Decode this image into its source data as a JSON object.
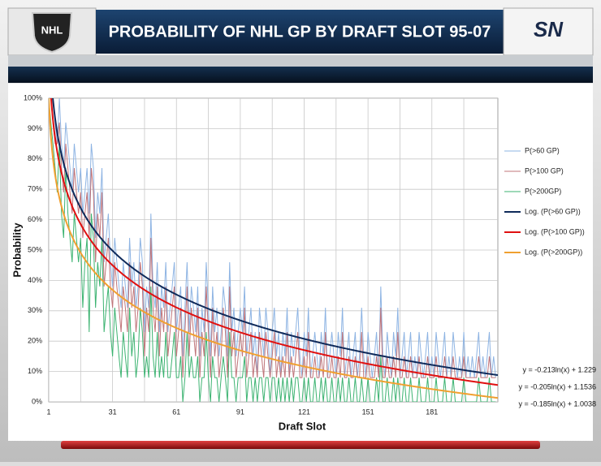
{
  "branding": {
    "left": "NHL",
    "right": "SN"
  },
  "chart_data": {
    "type": "line",
    "title": "PROBABILITY OF NHL GP BY DRAFT SLOT 95-07",
    "xlabel": "Draft Slot",
    "ylabel": "Probability",
    "xlim": [
      1,
      212
    ],
    "xticks": [
      1,
      31,
      61,
      91,
      121,
      151,
      181
    ],
    "xminor": [
      16,
      46,
      76,
      106,
      136,
      166,
      196
    ],
    "ylim": [
      0,
      1
    ],
    "yticks": [
      {
        "value": 0,
        "label": "0%"
      },
      {
        "value": 0.1,
        "label": "10%"
      },
      {
        "value": 0.2,
        "label": "20%"
      },
      {
        "value": 0.3,
        "label": "30%"
      },
      {
        "value": 0.4,
        "label": "40%"
      },
      {
        "value": 0.5,
        "label": "50%"
      },
      {
        "value": 0.6,
        "label": "60%"
      },
      {
        "value": 0.7,
        "label": "70%"
      },
      {
        "value": 0.8,
        "label": "80%"
      },
      {
        "value": 0.9,
        "label": "90%"
      },
      {
        "value": 1,
        "label": "100%"
      }
    ],
    "grid": true,
    "legend": "right",
    "x": [
      1,
      2,
      3,
      4,
      5,
      6,
      7,
      8,
      9,
      10,
      11,
      12,
      13,
      14,
      15,
      16,
      17,
      18,
      19,
      20,
      21,
      22,
      23,
      24,
      25,
      26,
      27,
      28,
      29,
      30,
      31,
      32,
      33,
      34,
      35,
      36,
      37,
      38,
      39,
      40,
      41,
      42,
      43,
      44,
      45,
      46,
      47,
      48,
      49,
      50,
      51,
      52,
      53,
      54,
      55,
      56,
      57,
      58,
      59,
      60,
      61,
      62,
      63,
      64,
      65,
      66,
      67,
      68,
      69,
      70,
      71,
      72,
      73,
      74,
      75,
      76,
      77,
      78,
      79,
      80,
      81,
      82,
      83,
      84,
      85,
      86,
      87,
      88,
      89,
      90,
      91,
      92,
      93,
      94,
      95,
      96,
      97,
      98,
      99,
      100,
      101,
      102,
      103,
      104,
      105,
      106,
      107,
      108,
      109,
      110,
      111,
      112,
      113,
      114,
      115,
      116,
      117,
      118,
      119,
      120,
      121,
      122,
      123,
      124,
      125,
      126,
      127,
      128,
      129,
      130,
      131,
      132,
      133,
      134,
      135,
      136,
      137,
      138,
      139,
      140,
      141,
      142,
      143,
      144,
      145,
      146,
      147,
      148,
      149,
      150,
      151,
      152,
      153,
      154,
      155,
      156,
      157,
      158,
      159,
      160,
      161,
      162,
      163,
      164,
      165,
      166,
      167,
      168,
      169,
      170,
      171,
      172,
      173,
      174,
      175,
      176,
      177,
      178,
      179,
      180,
      181,
      182,
      183,
      184,
      185,
      186,
      187,
      188,
      189,
      190,
      191,
      192,
      193,
      194,
      195,
      196,
      197,
      198,
      199,
      200,
      201,
      202,
      203,
      204,
      205,
      206,
      207,
      208,
      209,
      210,
      211
    ],
    "series": [
      {
        "name": "P(>60 GP)",
        "color": "#8eb4e3",
        "values": [
          1,
          1,
          1,
          0.92,
          0.85,
          1,
          0.85,
          0.77,
          0.92,
          0.85,
          0.77,
          0.69,
          0.85,
          0.77,
          0.69,
          0.77,
          0.62,
          0.69,
          0.77,
          0.62,
          0.85,
          0.77,
          0.54,
          0.69,
          0.62,
          0.77,
          0.46,
          0.54,
          0.62,
          0.46,
          0.38,
          0.54,
          0.46,
          0.38,
          0.31,
          0.46,
          0.38,
          0.31,
          0.54,
          0.38,
          0.46,
          0.31,
          0.38,
          0.54,
          0.46,
          0.23,
          0.38,
          0.31,
          0.62,
          0.38,
          0.31,
          0.46,
          0.23,
          0.38,
          0.31,
          0.46,
          0.23,
          0.31,
          0.38,
          0.46,
          0.23,
          0.31,
          0.38,
          0.15,
          0.31,
          0.46,
          0.23,
          0.38,
          0.31,
          0.23,
          0.38,
          0.15,
          0.31,
          0.23,
          0.46,
          0.31,
          0.15,
          0.38,
          0.23,
          0.31,
          0.15,
          0.23,
          0.38,
          0.31,
          0.15,
          0.46,
          0.23,
          0.31,
          0.15,
          0.23,
          0.31,
          0.23,
          0.38,
          0.15,
          0.23,
          0.31,
          0.15,
          0.23,
          0.08,
          0.31,
          0.23,
          0.15,
          0.31,
          0.23,
          0.08,
          0.23,
          0.31,
          0.15,
          0.23,
          0.08,
          0.23,
          0.15,
          0.31,
          0.08,
          0.23,
          0.15,
          0.23,
          0.31,
          0.15,
          0.08,
          0.23,
          0.15,
          0.31,
          0.08,
          0.15,
          0.23,
          0.15,
          0.08,
          0.23,
          0.15,
          0.31,
          0.08,
          0.15,
          0.23,
          0.15,
          0.08,
          0.23,
          0.15,
          0.31,
          0.08,
          0.15,
          0.23,
          0.08,
          0.15,
          0.23,
          0.08,
          0.15,
          0.31,
          0.15,
          0.08,
          0.23,
          0.15,
          0.08,
          0.15,
          0.23,
          0.08,
          0.38,
          0.15,
          0.08,
          0.23,
          0.15,
          0.08,
          0.23,
          0.15,
          0.31,
          0.08,
          0.15,
          0.23,
          0.08,
          0.15,
          0.23,
          0.08,
          0.15,
          0.08,
          0.23,
          0.15,
          0.08,
          0.15,
          0.23,
          0.08,
          0.15,
          0.08,
          0.23,
          0.15,
          0.08,
          0.15,
          0.23,
          0.08,
          0.15,
          0.08,
          0.23,
          0.15,
          0.08,
          0.15,
          0.08,
          0.23,
          0.08,
          0.15,
          0.08,
          0.15,
          0.08,
          0.15,
          0.23,
          0.08,
          0.15,
          0.08,
          0.15,
          0.23,
          0.08,
          0.15,
          0.08
        ]
      },
      {
        "name": "P(>100 GP)",
        "color": "#c0757a",
        "values": [
          1,
          1,
          0.92,
          0.85,
          0.85,
          0.92,
          0.77,
          0.69,
          0.85,
          0.77,
          0.69,
          0.62,
          0.77,
          0.69,
          0.62,
          0.69,
          0.54,
          0.62,
          0.69,
          0.54,
          0.77,
          0.69,
          0.46,
          0.62,
          0.54,
          0.69,
          0.38,
          0.46,
          0.54,
          0.38,
          0.31,
          0.46,
          0.38,
          0.31,
          0.23,
          0.38,
          0.31,
          0.23,
          0.46,
          0.31,
          0.38,
          0.23,
          0.31,
          0.46,
          0.38,
          0.15,
          0.31,
          0.23,
          0.54,
          0.31,
          0.23,
          0.38,
          0.15,
          0.31,
          0.23,
          0.38,
          0.15,
          0.23,
          0.31,
          0.38,
          0.15,
          0.23,
          0.31,
          0.08,
          0.23,
          0.38,
          0.15,
          0.31,
          0.23,
          0.15,
          0.31,
          0.08,
          0.23,
          0.15,
          0.38,
          0.23,
          0.08,
          0.31,
          0.15,
          0.23,
          0.08,
          0.15,
          0.31,
          0.23,
          0.08,
          0.38,
          0.15,
          0.23,
          0.08,
          0.15,
          0.23,
          0.15,
          0.31,
          0.08,
          0.15,
          0.23,
          0.08,
          0.15,
          0.08,
          0.23,
          0.15,
          0.08,
          0.23,
          0.15,
          0.08,
          0.15,
          0.23,
          0.08,
          0.15,
          0.08,
          0.15,
          0.08,
          0.23,
          0.08,
          0.15,
          0.08,
          0.15,
          0.23,
          0.08,
          0.08,
          0.15,
          0.08,
          0.23,
          0.08,
          0.08,
          0.15,
          0.08,
          0.08,
          0.15,
          0.08,
          0.23,
          0.08,
          0.08,
          0.15,
          0.08,
          0.08,
          0.15,
          0.08,
          0.23,
          0.08,
          0.08,
          0.15,
          0.08,
          0.08,
          0.15,
          0.08,
          0.08,
          0.23,
          0.08,
          0.08,
          0.15,
          0.08,
          0.08,
          0.08,
          0.15,
          0.08,
          0.31,
          0.08,
          0.08,
          0.15,
          0.08,
          0.08,
          0.15,
          0.08,
          0.23,
          0.08,
          0.08,
          0.15,
          0.08,
          0.08,
          0.15,
          0.08,
          0.08,
          0.08,
          0.15,
          0.08,
          0.08,
          0.08,
          0.15,
          0.08,
          0.08,
          0.08,
          0.15,
          0.08,
          0.08,
          0.08,
          0.15,
          0.08,
          0.08,
          0.08,
          0.15,
          0.08,
          0.08,
          0.08,
          0.08,
          0.15,
          0.08,
          0.08,
          0.08,
          0.08,
          0.08,
          0.08,
          0.15,
          0.08,
          0.08,
          0.08,
          0.08,
          0.15,
          0.08,
          0.08,
          0.08
        ]
      },
      {
        "name": "P(>200GP)",
        "color": "#3cb371",
        "values": [
          1,
          0.92,
          0.85,
          0.77,
          0.69,
          0.85,
          0.62,
          0.54,
          0.77,
          0.62,
          0.54,
          0.46,
          0.62,
          0.54,
          0.46,
          0.54,
          0.31,
          0.46,
          0.54,
          0.23,
          0.62,
          0.54,
          0.31,
          0.46,
          0.38,
          0.54,
          0.23,
          0.31,
          0.38,
          0.23,
          0.15,
          0.31,
          0.23,
          0.15,
          0.08,
          0.23,
          0.15,
          0.08,
          0.31,
          0.15,
          0.23,
          0.08,
          0.15,
          0.31,
          0.23,
          0.08,
          0.15,
          0.08,
          0.38,
          0.15,
          0.08,
          0.23,
          0.08,
          0.15,
          0.08,
          0.23,
          0.08,
          0.08,
          0.15,
          0.23,
          0.08,
          0.08,
          0.15,
          0,
          0.08,
          0.23,
          0.08,
          0.15,
          0.08,
          0.08,
          0.15,
          0,
          0.08,
          0.08,
          0.23,
          0.08,
          0,
          0.15,
          0.08,
          0.08,
          0,
          0.08,
          0.15,
          0.08,
          0,
          0.23,
          0.08,
          0.08,
          0,
          0.08,
          0.08,
          0.08,
          0.15,
          0,
          0.08,
          0.08,
          0,
          0.08,
          0,
          0.08,
          0.08,
          0,
          0.08,
          0.08,
          0,
          0.08,
          0.08,
          0,
          0.08,
          0,
          0.08,
          0,
          0.08,
          0,
          0.08,
          0,
          0.08,
          0.08,
          0,
          0,
          0.08,
          0,
          0.08,
          0,
          0,
          0.08,
          0,
          0,
          0.08,
          0,
          0.08,
          0,
          0,
          0.08,
          0,
          0,
          0.08,
          0,
          0.08,
          0,
          0,
          0.08,
          0,
          0,
          0.08,
          0,
          0,
          0.08,
          0,
          0,
          0.08,
          0,
          0,
          0,
          0.08,
          0,
          0.15,
          0,
          0,
          0.08,
          0,
          0,
          0.08,
          0,
          0.08,
          0,
          0,
          0.08,
          0,
          0,
          0.08,
          0,
          0,
          0,
          0.08,
          0,
          0,
          0,
          0.08,
          0,
          0,
          0,
          0.08,
          0,
          0,
          0,
          0.08,
          0,
          0,
          0,
          0.08,
          0,
          0,
          0,
          0,
          0.08,
          0,
          0,
          0,
          0,
          0,
          0,
          0.08,
          0,
          0,
          0,
          0,
          0.08,
          0,
          0,
          0
        ]
      }
    ],
    "trendlines": [
      {
        "name": "Log. (P(>60 GP))",
        "color": "#0f2a5a",
        "coef": -0.213,
        "intercept": 1.229,
        "equation": "y = -0.213ln(x) + 1.229"
      },
      {
        "name": "Log. (P(>100 GP))",
        "color": "#e01010",
        "coef": -0.205,
        "intercept": 1.1536,
        "equation": "y = -0.205ln(x) + 1.1536"
      },
      {
        "name": "Log. (P(>200GP))",
        "color": "#f0a030",
        "coef": -0.185,
        "intercept": 1.0038,
        "equation": "y = -0.185ln(x) + 1.0038"
      }
    ]
  }
}
